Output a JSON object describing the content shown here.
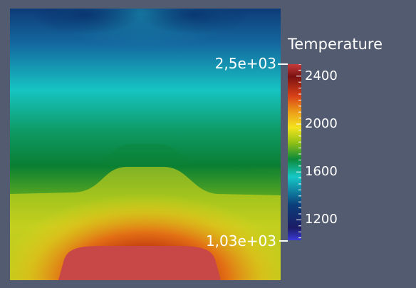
{
  "legend": {
    "title": "Temperature",
    "range_max_label": "2,5e+03",
    "range_min_label": "1,03e+03",
    "range_max": 2500,
    "range_min": 1030,
    "ticks": [
      {
        "label": "2400",
        "value": 2400
      },
      {
        "label": "2000",
        "value": 2000
      },
      {
        "label": "1600",
        "value": 1600
      },
      {
        "label": "1200",
        "value": 1200
      }
    ],
    "colormap": [
      "#3a3ad8",
      "#1c1c66",
      "#0a3e7a",
      "#16c8c8",
      "#0c8a3a",
      "#9ac414",
      "#f4e41e",
      "#ec9c18",
      "#d84018",
      "#7a1010",
      "#c83c3c"
    ]
  },
  "colors": {
    "background": "#525b6f",
    "hot_spot": "#c84848"
  }
}
